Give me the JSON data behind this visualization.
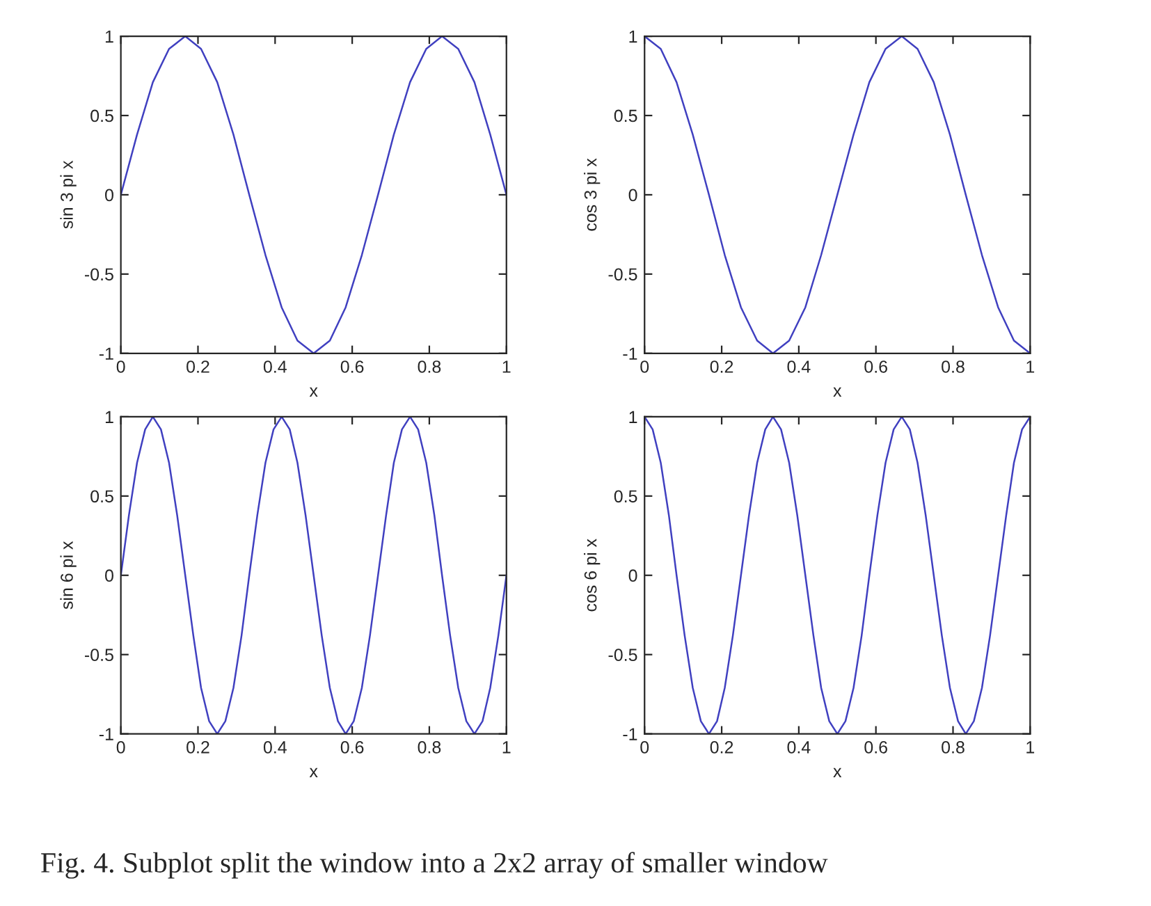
{
  "chart_data": [
    {
      "type": "line",
      "xlabel": "x",
      "ylabel": "sin 3 pi x",
      "xlim": [
        0,
        1
      ],
      "ylim": [
        -1,
        1
      ],
      "xticks": [
        0,
        0.2,
        0.4,
        0.6,
        0.8,
        1
      ],
      "yticks": [
        -1,
        -0.5,
        0,
        0.5,
        1
      ],
      "grid": false,
      "marker": "none",
      "line_style": "solid",
      "x": [
        0,
        0.042,
        0.083,
        0.125,
        0.167,
        0.208,
        0.25,
        0.292,
        0.333,
        0.375,
        0.417,
        0.458,
        0.5,
        0.542,
        0.583,
        0.625,
        0.667,
        0.708,
        0.75,
        0.792,
        0.833,
        0.875,
        0.917,
        0.958,
        1
      ],
      "series": [
        {
          "color": "#4040c0",
          "values": [
            0,
            0.38,
            0.71,
            0.92,
            1,
            0.92,
            0.71,
            0.38,
            0,
            -0.38,
            -0.71,
            -0.92,
            -1,
            -0.92,
            -0.71,
            -0.38,
            0,
            0.38,
            0.71,
            0.92,
            1,
            0.92,
            0.71,
            0.38,
            0
          ]
        }
      ]
    },
    {
      "type": "line",
      "xlabel": "x",
      "ylabel": "cos 3 pi x",
      "xlim": [
        0,
        1
      ],
      "ylim": [
        -1,
        1
      ],
      "xticks": [
        0,
        0.2,
        0.4,
        0.6,
        0.8,
        1
      ],
      "yticks": [
        -1,
        -0.5,
        0,
        0.5,
        1
      ],
      "grid": false,
      "marker": "none",
      "line_style": "solid",
      "x": [
        0,
        0.042,
        0.083,
        0.125,
        0.167,
        0.208,
        0.25,
        0.292,
        0.333,
        0.375,
        0.417,
        0.458,
        0.5,
        0.542,
        0.583,
        0.625,
        0.667,
        0.708,
        0.75,
        0.792,
        0.833,
        0.875,
        0.917,
        0.958,
        1
      ],
      "series": [
        {
          "color": "#4040c0",
          "values": [
            1,
            0.92,
            0.71,
            0.38,
            0,
            -0.38,
            -0.71,
            -0.92,
            -1,
            -0.92,
            -0.71,
            -0.38,
            0,
            0.38,
            0.71,
            0.92,
            1,
            0.92,
            0.71,
            0.38,
            0,
            -0.38,
            -0.71,
            -0.92,
            -1
          ]
        }
      ]
    },
    {
      "type": "line",
      "xlabel": "x",
      "ylabel": "sin 6 pi x",
      "xlim": [
        0,
        1
      ],
      "ylim": [
        -1,
        1
      ],
      "xticks": [
        0,
        0.2,
        0.4,
        0.6,
        0.8,
        1
      ],
      "yticks": [
        -1,
        -0.5,
        0,
        0.5,
        1
      ],
      "grid": false,
      "marker": "none",
      "line_style": "solid",
      "x": [
        0,
        0.021,
        0.042,
        0.063,
        0.083,
        0.104,
        0.125,
        0.146,
        0.167,
        0.188,
        0.208,
        0.229,
        0.25,
        0.271,
        0.292,
        0.313,
        0.333,
        0.354,
        0.375,
        0.396,
        0.417,
        0.438,
        0.458,
        0.479,
        0.5,
        0.521,
        0.542,
        0.563,
        0.583,
        0.604,
        0.625,
        0.646,
        0.667,
        0.688,
        0.708,
        0.729,
        0.75,
        0.771,
        0.792,
        0.813,
        0.833,
        0.854,
        0.875,
        0.896,
        0.917,
        0.938,
        0.958,
        0.979,
        1
      ],
      "series": [
        {
          "color": "#4040c0",
          "values": [
            0,
            0.38,
            0.71,
            0.92,
            1,
            0.92,
            0.71,
            0.38,
            0,
            -0.38,
            -0.71,
            -0.92,
            -1,
            -0.92,
            -0.71,
            -0.38,
            0,
            0.38,
            0.71,
            0.92,
            1,
            0.92,
            0.71,
            0.38,
            0,
            -0.38,
            -0.71,
            -0.92,
            -1,
            -0.92,
            -0.71,
            -0.38,
            0,
            0.38,
            0.71,
            0.92,
            1,
            0.92,
            0.71,
            0.38,
            0,
            -0.38,
            -0.71,
            -0.92,
            -1,
            -0.92,
            -0.71,
            -0.38,
            0
          ]
        }
      ]
    },
    {
      "type": "line",
      "xlabel": "x",
      "ylabel": "cos 6 pi x",
      "xlim": [
        0,
        1
      ],
      "ylim": [
        -1,
        1
      ],
      "xticks": [
        0,
        0.2,
        0.4,
        0.6,
        0.8,
        1
      ],
      "yticks": [
        -1,
        -0.5,
        0,
        0.5,
        1
      ],
      "grid": false,
      "marker": "none",
      "line_style": "solid",
      "x": [
        0,
        0.021,
        0.042,
        0.063,
        0.083,
        0.104,
        0.125,
        0.146,
        0.167,
        0.188,
        0.208,
        0.229,
        0.25,
        0.271,
        0.292,
        0.313,
        0.333,
        0.354,
        0.375,
        0.396,
        0.417,
        0.438,
        0.458,
        0.479,
        0.5,
        0.521,
        0.542,
        0.563,
        0.583,
        0.604,
        0.625,
        0.646,
        0.667,
        0.688,
        0.708,
        0.729,
        0.75,
        0.771,
        0.792,
        0.813,
        0.833,
        0.854,
        0.875,
        0.896,
        0.917,
        0.938,
        0.958,
        0.979,
        1
      ],
      "series": [
        {
          "color": "#4040c0",
          "values": [
            1,
            0.92,
            0.71,
            0.38,
            0,
            -0.38,
            -0.71,
            -0.92,
            -1,
            -0.92,
            -0.71,
            -0.38,
            0,
            0.38,
            0.71,
            0.92,
            1,
            0.92,
            0.71,
            0.38,
            0,
            -0.38,
            -0.71,
            -0.92,
            -1,
            -0.92,
            -0.71,
            -0.38,
            0,
            0.38,
            0.71,
            0.92,
            1,
            0.92,
            0.71,
            0.38,
            0,
            -0.38,
            -0.71,
            -0.92,
            -1,
            -0.92,
            -0.71,
            -0.38,
            0,
            0.38,
            0.71,
            0.92,
            1
          ]
        }
      ]
    },
    {
      "type": "other",
      "annotations": [
        "Fig. 4. Subplot split the window into a 2x2 array of smaller window"
      ]
    }
  ]
}
